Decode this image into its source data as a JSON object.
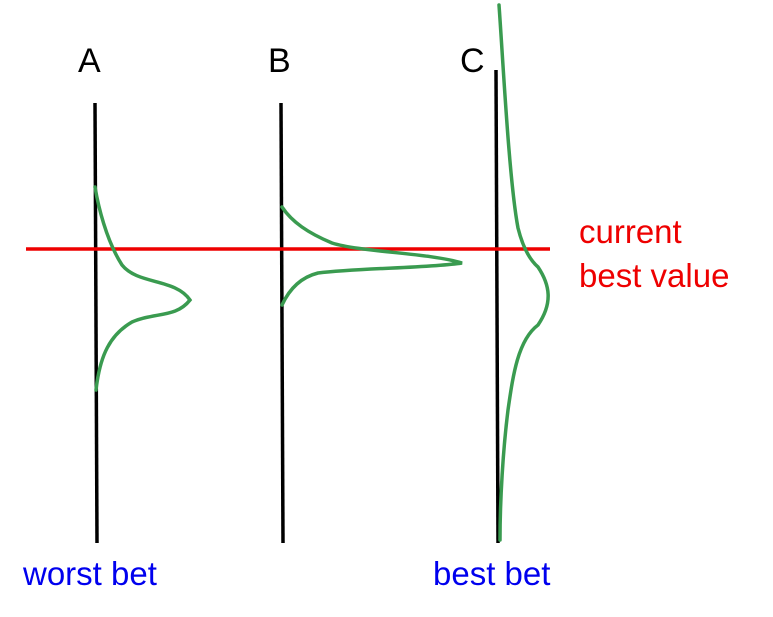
{
  "columns": [
    {
      "label": "A"
    },
    {
      "label": "B"
    },
    {
      "label": "C"
    }
  ],
  "threshold": {
    "label_line1": "current",
    "label_line2": "best value"
  },
  "captions": {
    "worst": "worst bet",
    "best": "best bet"
  },
  "colors": {
    "axis": "#000000",
    "threshold": "#ee0000",
    "distribution": "#3a9b50",
    "caption": "#0000ee"
  }
}
